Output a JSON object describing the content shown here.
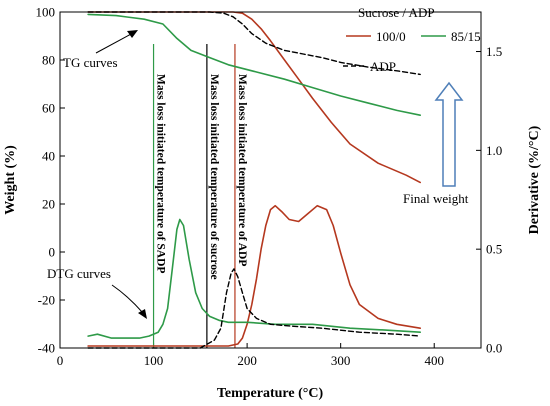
{
  "chart_data": {
    "type": "line",
    "xlabel": "Temperature (°C)",
    "ylabel_left": "Weight (%)",
    "ylabel_right": "Derivative (%/°C)",
    "xlim": [
      0,
      450
    ],
    "ylim_left": [
      -40,
      100
    ],
    "ylim_right": [
      0,
      1.7
    ],
    "x_ticks": [
      0,
      100,
      200,
      300,
      400
    ],
    "y_ticks_left": [
      -40,
      -20,
      0,
      20,
      40,
      60,
      80,
      100
    ],
    "y_ticks_right": [
      0.0,
      0.5,
      1.0,
      1.5
    ],
    "legend_title": "Sucrose / ADP",
    "legend": {
      "items": [
        "100/0",
        "85/15"
      ]
    },
    "colors": {
      "s100": "#b5381f",
      "s85": "#2e9a48",
      "adp": "#000000",
      "arrow": "#4f7fb8"
    },
    "series": [
      {
        "name": "100/0",
        "kind": "TG",
        "axis": "left",
        "color": "#b5381f",
        "dash": "solid",
        "x": [
          30,
          100,
          160,
          185,
          195,
          205,
          215,
          225,
          240,
          255,
          270,
          290,
          310,
          340,
          370,
          385
        ],
        "y": [
          100,
          100,
          100,
          100,
          99.5,
          97,
          93,
          88,
          80,
          72,
          64,
          54,
          45,
          37,
          32,
          29
        ]
      },
      {
        "name": "85/15",
        "kind": "TG",
        "axis": "left",
        "color": "#2e9a48",
        "dash": "solid",
        "x": [
          30,
          60,
          90,
          110,
          125,
          140,
          160,
          180,
          210,
          240,
          270,
          300,
          330,
          360,
          385
        ],
        "y": [
          99,
          98.5,
          97,
          95,
          89,
          84,
          81,
          78,
          75,
          72,
          68.5,
          65,
          62,
          59,
          57
        ]
      },
      {
        "name": "ADP",
        "kind": "TG",
        "axis": "left",
        "color": "#000000",
        "dash": "dashed",
        "x": [
          30,
          100,
          160,
          175,
          185,
          195,
          205,
          220,
          240,
          260,
          280,
          300,
          330,
          360,
          385
        ],
        "y": [
          100,
          100,
          100,
          99.5,
          98,
          95,
          91,
          87,
          84,
          82.5,
          81,
          79,
          77,
          75.5,
          74
        ]
      },
      {
        "name": "100/0",
        "kind": "DTG",
        "axis": "right",
        "color": "#b5381f",
        "dash": "solid",
        "x": [
          30,
          150,
          180,
          190,
          195,
          200,
          205,
          210,
          215,
          220,
          225,
          230,
          237,
          245,
          255,
          265,
          275,
          285,
          292,
          300,
          310,
          320,
          340,
          360,
          385
        ],
        "y": [
          0.01,
          0.01,
          0.01,
          0.02,
          0.05,
          0.12,
          0.22,
          0.35,
          0.5,
          0.62,
          0.7,
          0.72,
          0.69,
          0.65,
          0.64,
          0.68,
          0.72,
          0.7,
          0.62,
          0.48,
          0.32,
          0.22,
          0.15,
          0.12,
          0.1
        ]
      },
      {
        "name": "85/15",
        "kind": "DTG",
        "axis": "right",
        "color": "#2e9a48",
        "dash": "solid",
        "x": [
          30,
          40,
          55,
          70,
          85,
          95,
          105,
          110,
          115,
          120,
          125,
          128,
          132,
          138,
          145,
          152,
          160,
          170,
          180,
          200,
          230,
          270,
          310,
          350,
          385
        ],
        "y": [
          0.06,
          0.07,
          0.05,
          0.05,
          0.05,
          0.06,
          0.08,
          0.12,
          0.2,
          0.4,
          0.6,
          0.65,
          0.62,
          0.45,
          0.28,
          0.2,
          0.16,
          0.14,
          0.13,
          0.13,
          0.12,
          0.12,
          0.1,
          0.09,
          0.08
        ]
      },
      {
        "name": "ADP",
        "kind": "DTG",
        "axis": "right",
        "color": "#000000",
        "dash": "dashed",
        "x": [
          30,
          150,
          165,
          172,
          178,
          183,
          186,
          190,
          195,
          200,
          210,
          225,
          250,
          280,
          320,
          360,
          385
        ],
        "y": [
          0.0,
          0.0,
          0.04,
          0.1,
          0.28,
          0.38,
          0.4,
          0.36,
          0.28,
          0.2,
          0.15,
          0.12,
          0.11,
          0.1,
          0.08,
          0.07,
          0.06
        ]
      }
    ],
    "vlines": [
      {
        "x": 100,
        "color": "#2e9a48",
        "label": "Mass loss initiated temperature of SADP"
      },
      {
        "x": 157,
        "color": "#000000",
        "label": "Mass loss initiated temperature of sucrose"
      },
      {
        "x": 187,
        "color": "#b5381f",
        "label": "Mass loss initiated temperature of ADP"
      }
    ],
    "annotations": {
      "tg_curves": "TG curves",
      "dtg_curves": "DTG curves",
      "adp_label": "ADP",
      "final_weight": "Final weight"
    },
    "grid": false
  }
}
